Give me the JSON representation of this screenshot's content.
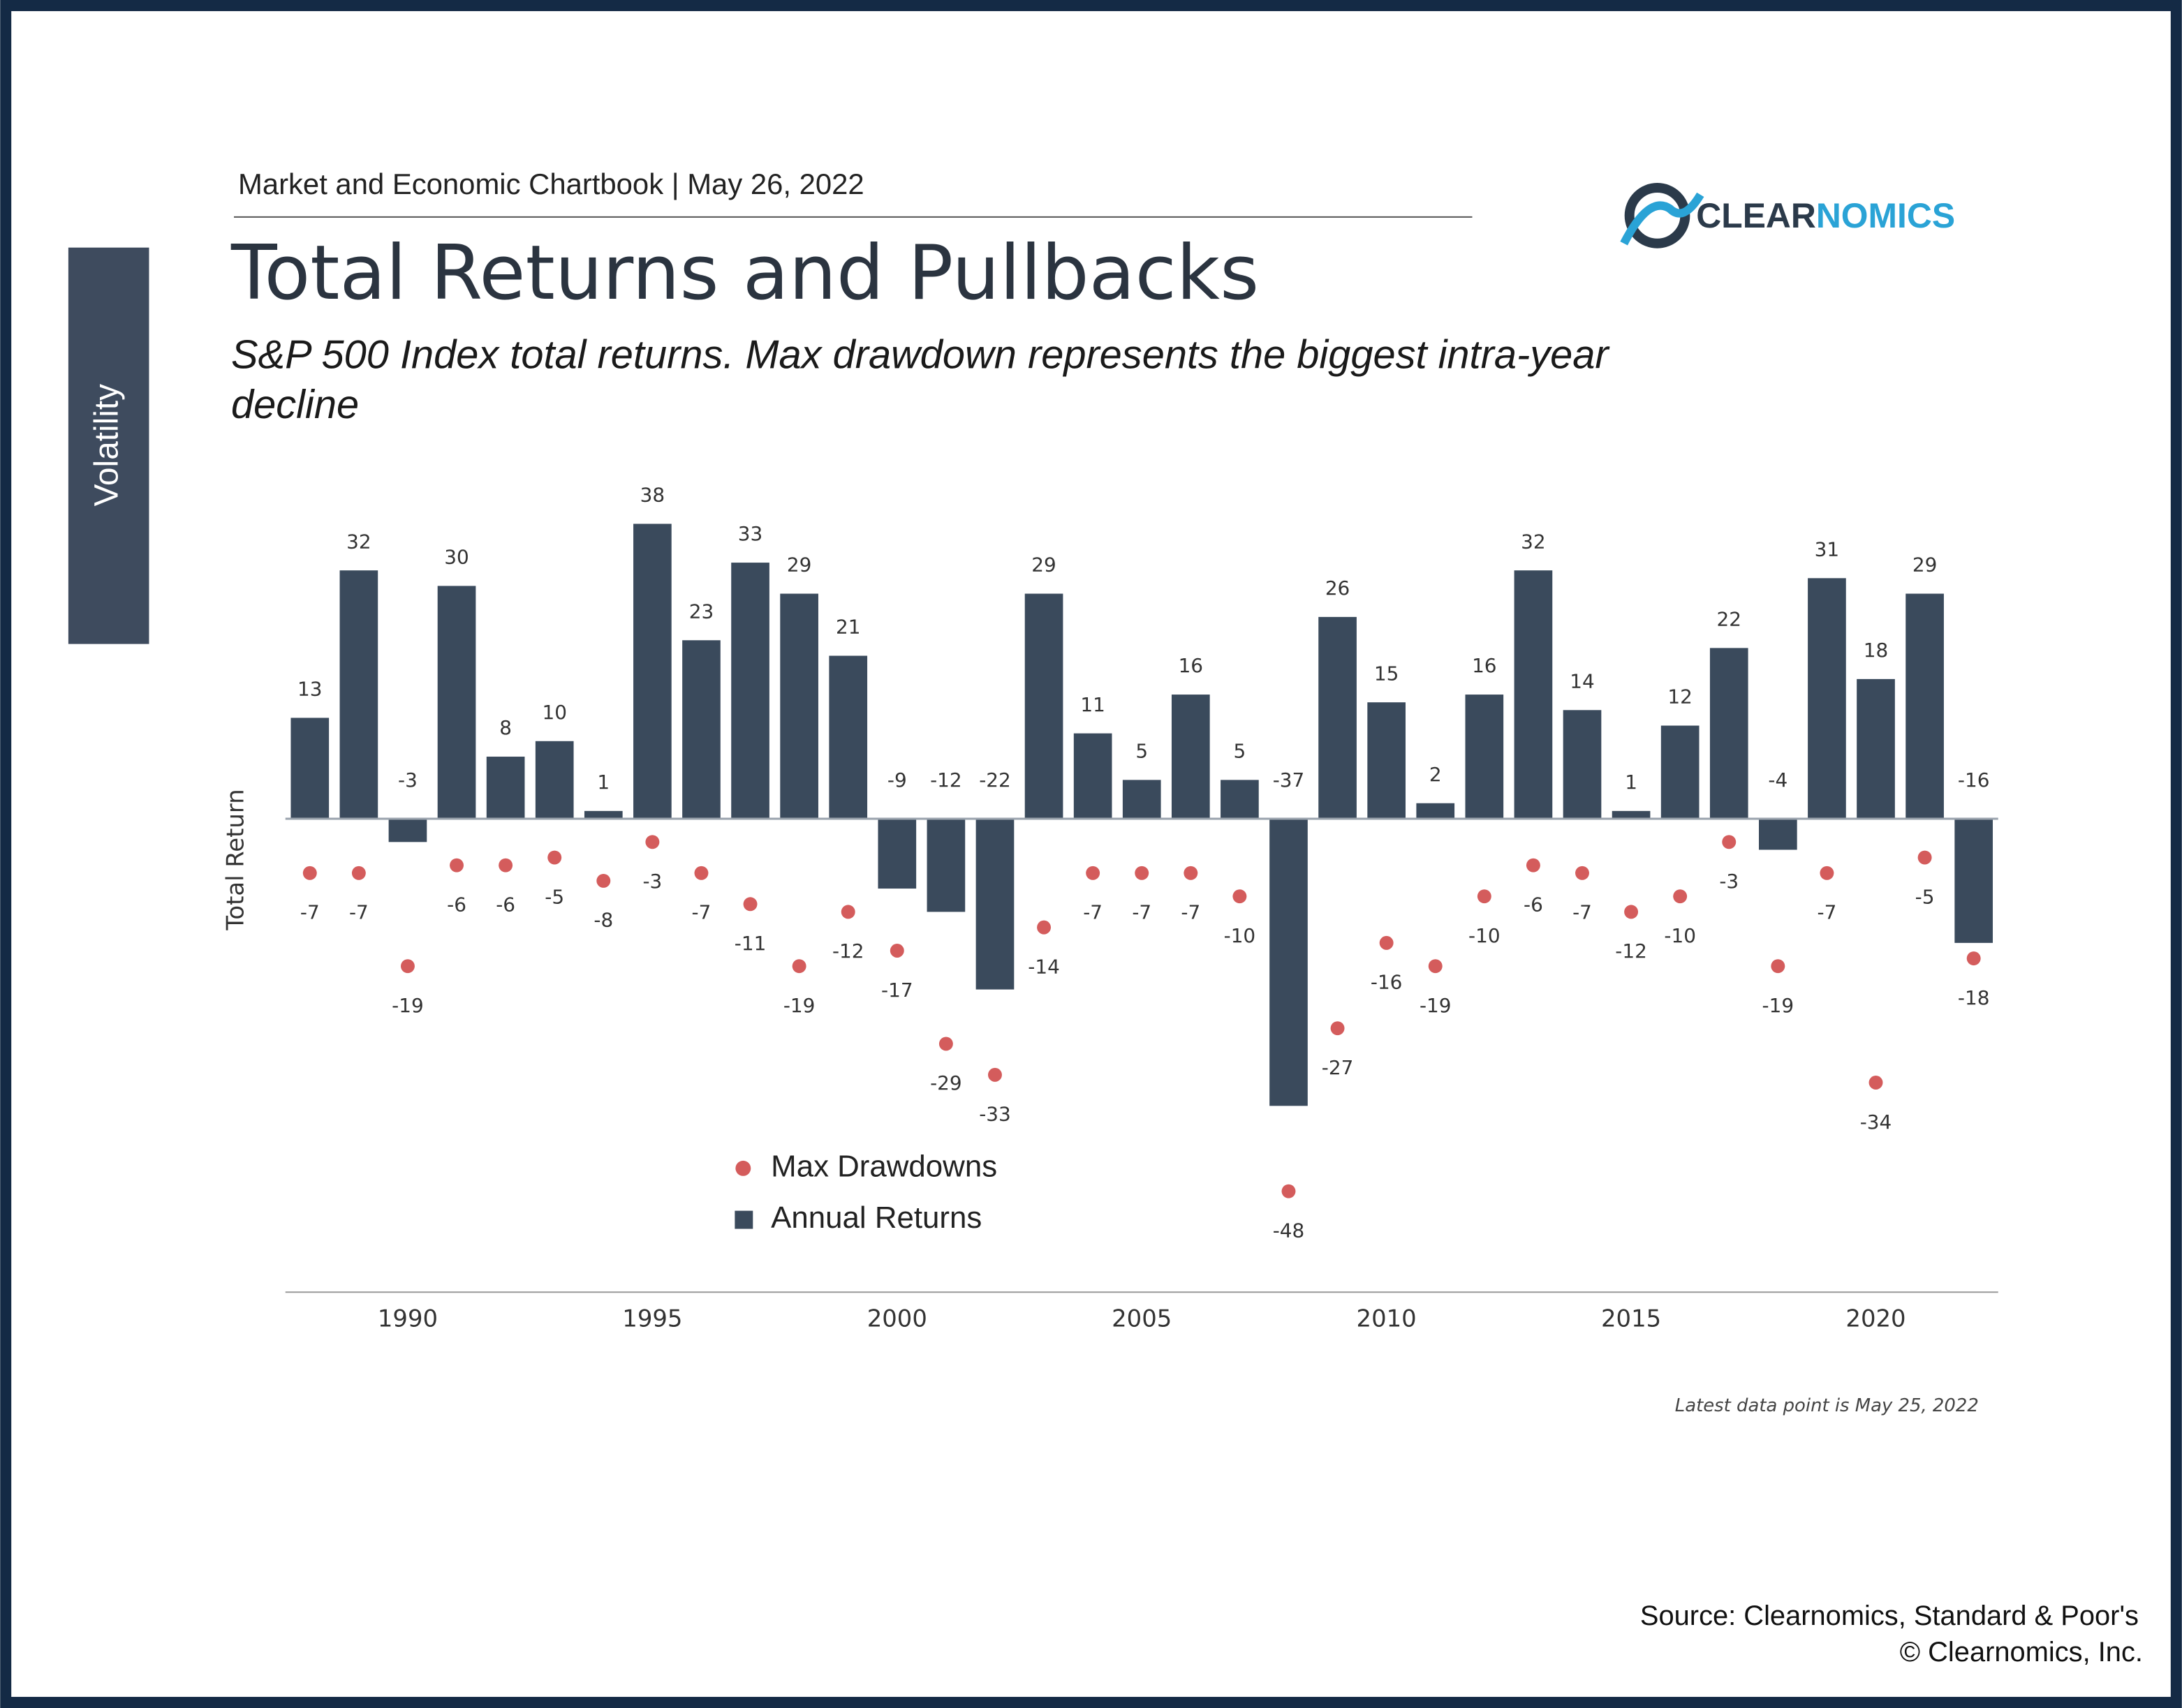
{
  "header": {
    "chartbook": "Market and Economic Chartbook | May 26, 2022",
    "section_tab": "Volatility",
    "logo": [
      "CLEAR",
      "NOMICS"
    ]
  },
  "chart_data": {
    "type": "bar",
    "title": "Total Returns and Pullbacks",
    "subtitle": [
      "S&P 500 Index total returns. Max drawdown represents the biggest intra-year",
      "decline"
    ],
    "y_label": "Total Return",
    "x": [
      1988,
      1989,
      1990,
      1991,
      1992,
      1993,
      1994,
      1995,
      1996,
      1997,
      1998,
      1999,
      2000,
      2001,
      2002,
      2003,
      2004,
      2005,
      2006,
      2007,
      2008,
      2009,
      2010,
      2011,
      2012,
      2013,
      2014,
      2015,
      2016,
      2017,
      2018,
      2019,
      2020,
      2021,
      2022
    ],
    "series": [
      {
        "name": "Max Drawdowns",
        "type": "scatter",
        "color": "#d45c5c",
        "values": [
          -7,
          -7,
          -19,
          -6,
          -6,
          -5,
          -8,
          -3,
          -7,
          -11,
          -19,
          -12,
          -17,
          -29,
          -33,
          -14,
          -7,
          -7,
          -7,
          -10,
          -48,
          -27,
          -16,
          -19,
          -10,
          -6,
          -7,
          -12,
          -10,
          -3,
          -19,
          -7,
          -34,
          -5,
          -18
        ]
      },
      {
        "name": "Annual Returns",
        "type": "bar",
        "color": "#3a4a5c",
        "values": [
          13,
          32,
          -3,
          30,
          8,
          10,
          1,
          38,
          23,
          33,
          29,
          21,
          -9,
          -12,
          -22,
          29,
          11,
          5,
          16,
          5,
          -37,
          26,
          15,
          2,
          16,
          32,
          14,
          1,
          12,
          22,
          -4,
          31,
          18,
          29,
          -16
        ]
      }
    ],
    "xlim": [
      1987.5,
      2022.5
    ],
    "xticks": [
      1990,
      1995,
      2000,
      2005,
      2010,
      2015,
      2020
    ],
    "ylim": [
      -61,
      42
    ],
    "note": "Latest data point is May 25, 2022"
  },
  "footer": {
    "source": "Source: Clearnomics, Standard & Poor's",
    "copyright": "© Clearnomics, Inc."
  }
}
